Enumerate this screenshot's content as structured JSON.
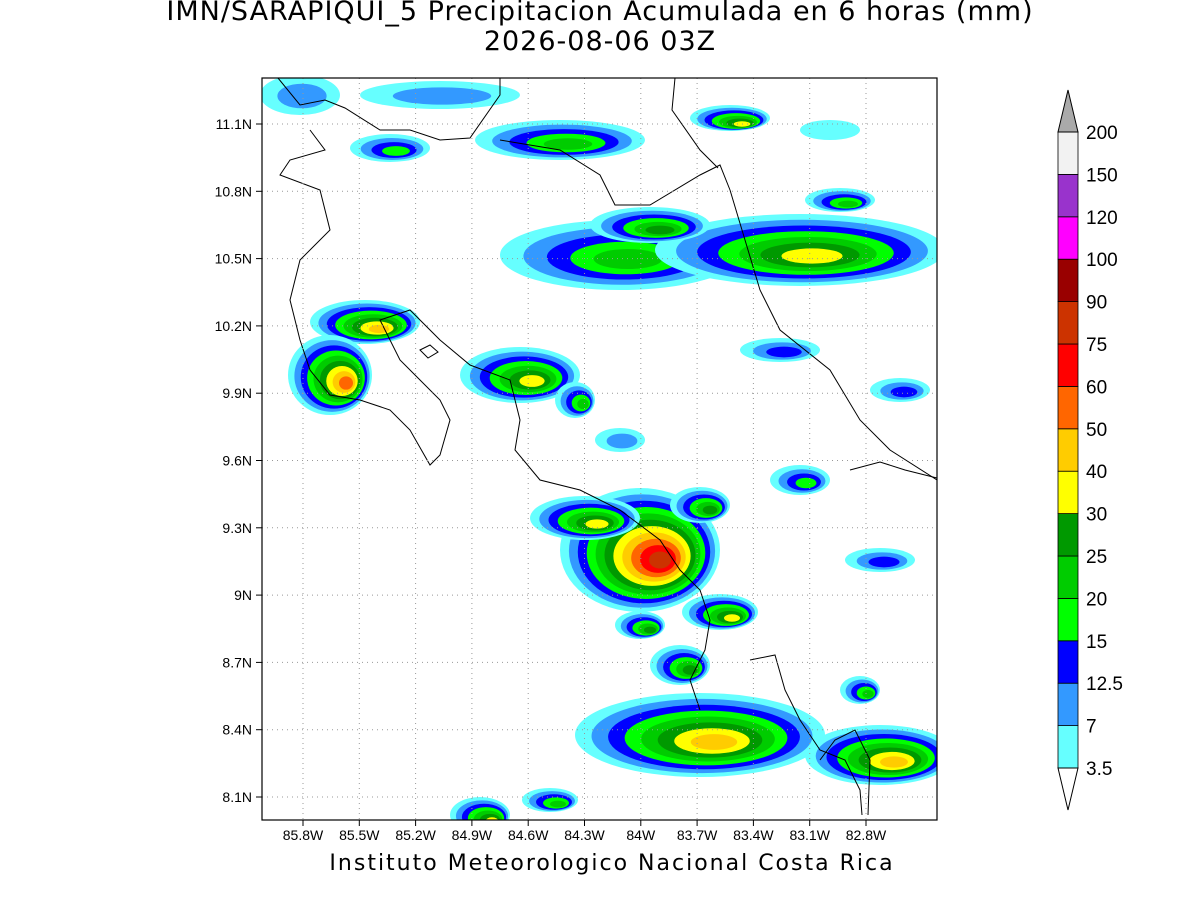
{
  "header": {
    "title": "IMN/SARAPIQUI_5 Precipitacion Acumulada en 6 horas (mm)",
    "subtitle": "2026-08-06 03Z"
  },
  "map": {
    "lat_labels": [
      "11.1N",
      "10.8N",
      "10.5N",
      "10.2N",
      "9.9N",
      "9.6N",
      "9.3N",
      "9N",
      "8.7N",
      "8.4N",
      "8.1N"
    ],
    "lon_labels": [
      "85.8W",
      "85.5W",
      "85.2W",
      "84.9W",
      "84.6W",
      "84.3W",
      "84W",
      "83.7W",
      "83.4W",
      "83.1W",
      "82.8W"
    ]
  },
  "legend": {
    "levels": [
      3.5,
      7,
      12.5,
      15,
      20,
      25,
      30,
      40,
      50,
      60,
      75,
      90,
      100,
      120,
      150,
      200
    ],
    "colors": [
      "#66ffff",
      "#3399ff",
      "#0000ff",
      "#00ff00",
      "#00cc00",
      "#009900",
      "#ffff00",
      "#ffcc00",
      "#ff6600",
      "#ff0000",
      "#cc3300",
      "#990000",
      "#ff00ff",
      "#9933cc",
      "#f2f2f2"
    ],
    "under_color": "#ffffff",
    "over_color": "#aaaaaa"
  },
  "footer": "Instituto Meteorologico Nacional Costa Rica"
}
